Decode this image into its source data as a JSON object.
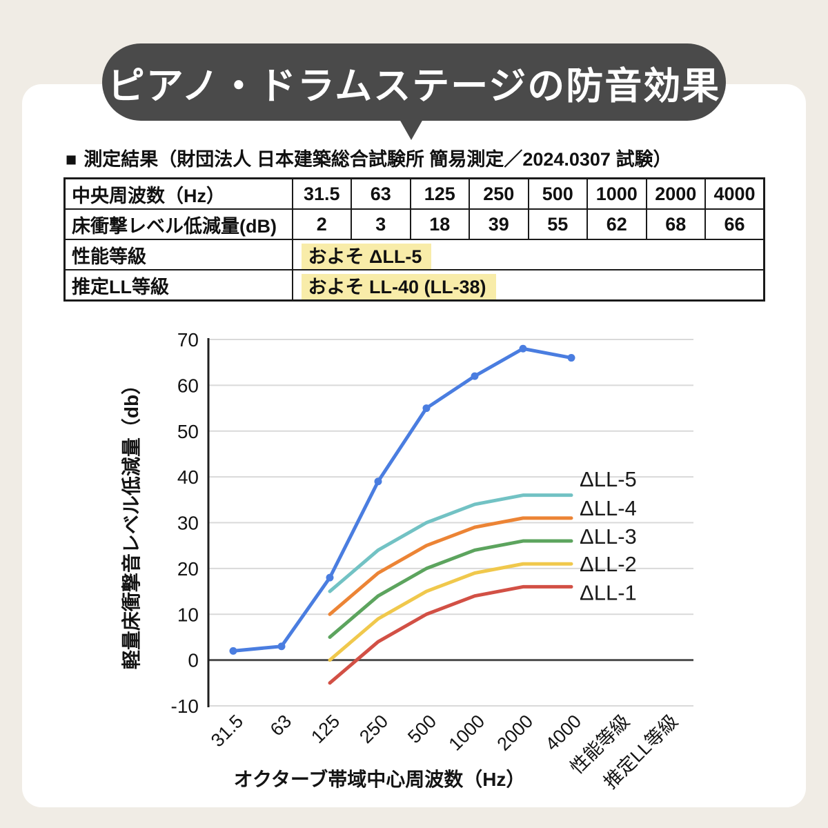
{
  "page": {
    "background_color": "#f0ece5",
    "banner_color": "#4a4a4a",
    "title": "ピアノ・ドラムステージの防音効果",
    "subtitle_marker": "■",
    "subtitle": "測定結果（財団法人 日本建築総合試験所 簡易測定／2024.0307 試験）"
  },
  "table": {
    "border_color": "#1a1a1a",
    "highlight_color": "#f8eca9",
    "rows": [
      {
        "label": "中央周波数（Hz）",
        "values": [
          "31.5",
          "63",
          "125",
          "250",
          "500",
          "1000",
          "2000",
          "4000"
        ]
      },
      {
        "label": "床衝撃レベル低減量(dB)",
        "values": [
          "2",
          "3",
          "18",
          "39",
          "55",
          "62",
          "68",
          "66"
        ]
      },
      {
        "label": "性能等級",
        "highlight_value": "およそ ΔLL-5"
      },
      {
        "label": "推定LL等級",
        "highlight_value": "およそ LL-40 (LL-38)"
      }
    ]
  },
  "chart_data": {
    "type": "line",
    "title": "",
    "xlabel": "オクターブ帯域中心周波数（Hz）",
    "ylabel": "軽量床衝撃音レベル低減量（db）",
    "x_categories": [
      "31.5",
      "63",
      "125",
      "250",
      "500",
      "1000",
      "2000",
      "4000"
    ],
    "x_extra_ticks": [
      "性能等級",
      "推定LL等級"
    ],
    "y_ticks": [
      70,
      60,
      50,
      40,
      30,
      20,
      10,
      0,
      -10
    ],
    "ylim": [
      -10,
      70
    ],
    "grid": true,
    "zero_line_color": "#4d4d4d",
    "grid_color": "#d9d9d9",
    "axis_color": "#1f1f1f",
    "legend_position": "right-annotations",
    "series": [
      {
        "name": "measured-series",
        "color": "#4a7de0",
        "marker": true,
        "start_index": 0,
        "values": [
          2,
          3,
          18,
          39,
          55,
          62,
          68,
          66
        ]
      },
      {
        "name": "ΔLL-5",
        "color": "#72c2c4",
        "marker": false,
        "start_index": 2,
        "values": [
          15,
          24,
          30,
          34,
          36,
          36
        ]
      },
      {
        "name": "ΔLL-4",
        "color": "#ec8435",
        "marker": false,
        "start_index": 2,
        "values": [
          10,
          19,
          25,
          29,
          31,
          31
        ]
      },
      {
        "name": "ΔLL-3",
        "color": "#5ca45e",
        "marker": false,
        "start_index": 2,
        "values": [
          5,
          14,
          20,
          24,
          26,
          26
        ]
      },
      {
        "name": "ΔLL-2",
        "color": "#f0c84c",
        "marker": false,
        "start_index": 2,
        "values": [
          0,
          9,
          15,
          19,
          21,
          21
        ]
      },
      {
        "name": "ΔLL-1",
        "color": "#d25045",
        "marker": false,
        "start_index": 2,
        "values": [
          -5,
          4,
          10,
          14,
          16,
          16
        ]
      }
    ],
    "annotations": [
      {
        "text": "ΔLL-5",
        "value": 39.4
      },
      {
        "text": "ΔLL-4",
        "value": 33.1
      },
      {
        "text": "ΔLL-3",
        "value": 26.9
      },
      {
        "text": "ΔLL-2",
        "value": 20.9
      },
      {
        "text": "ΔLL-1",
        "value": 14.6
      }
    ]
  }
}
